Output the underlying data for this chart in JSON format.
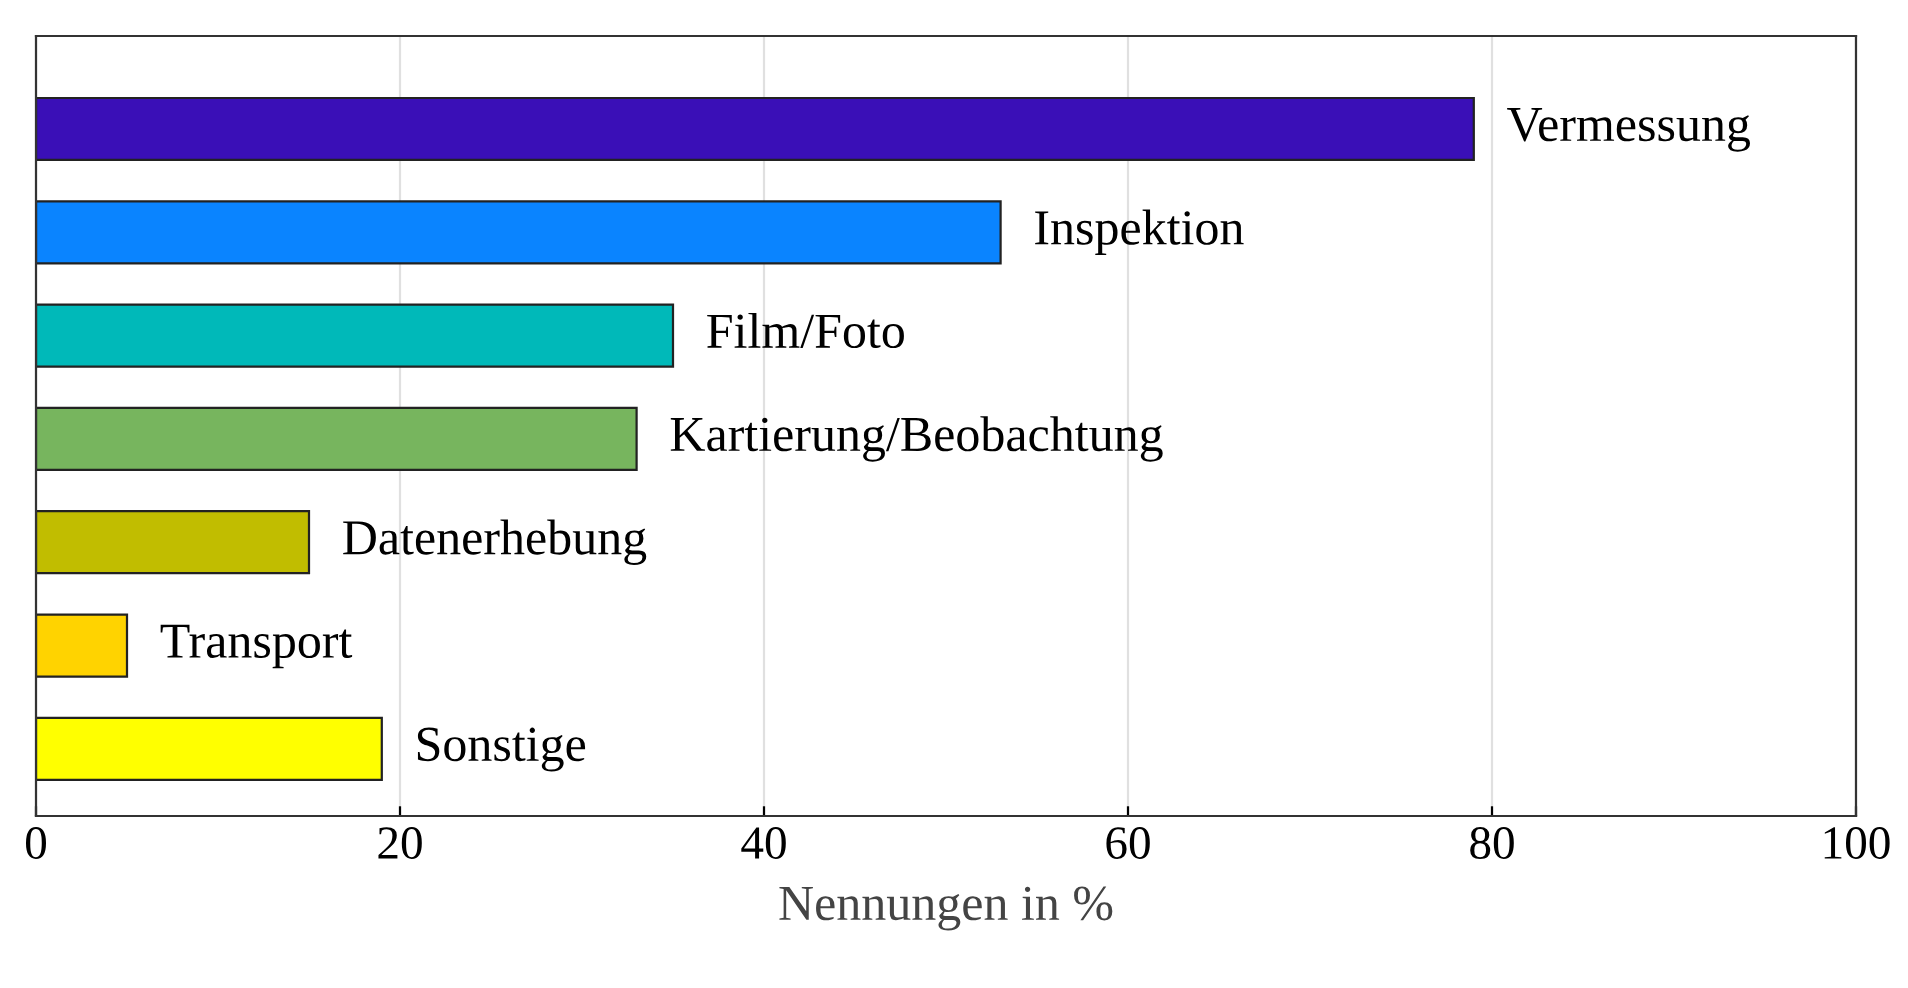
{
  "chart_data": {
    "type": "bar",
    "orientation": "horizontal",
    "categories": [
      "Vermessung",
      "Inspektion",
      "Film/Foto",
      "Kartierung/Beobachtung",
      "Datenerhebung",
      "Transport",
      "Sonstige"
    ],
    "values": [
      79,
      53,
      35,
      33,
      15,
      5,
      19
    ],
    "colors": [
      "#3a0fb7",
      "#0a84ff",
      "#00b9b9",
      "#77b55e",
      "#c1bd00",
      "#ffd300",
      "#ffff00"
    ],
    "xlabel": "Nennungen in %",
    "xlim": [
      0,
      100
    ],
    "xticks": [
      0,
      20,
      40,
      60,
      80,
      100
    ],
    "grid": "x",
    "tick_labels": "x"
  }
}
